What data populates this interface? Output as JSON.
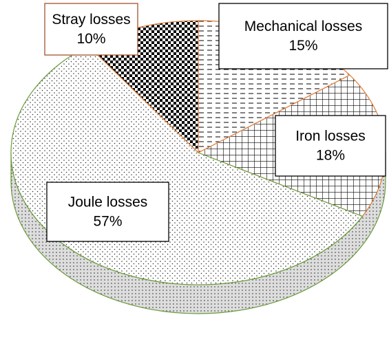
{
  "chart_data": {
    "type": "pie",
    "categories": [
      "Mechanical losses",
      "Iron losses",
      "Joule losses",
      "Stray losses"
    ],
    "values": [
      15,
      18,
      57,
      10
    ],
    "value_labels": [
      "15%",
      "18%",
      "57%",
      "10%"
    ],
    "colors": [
      "#e07b39",
      "#e07b39",
      "#6a9a3a",
      "#e07b39"
    ]
  }
}
